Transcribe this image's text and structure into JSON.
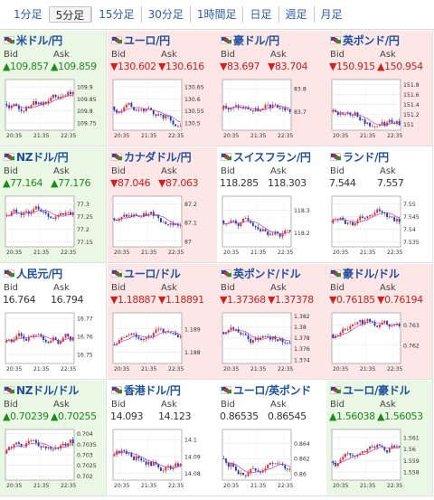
{
  "tabs": [
    "1分足",
    "5分足",
    "15分足",
    "30分足",
    "1時間足",
    "日足",
    "週足",
    "月足"
  ],
  "active_tab": "5分足",
  "time_labels": [
    "20:35",
    "21:35",
    "22:35"
  ],
  "pairs": [
    {
      "name": "米ドル/円",
      "bid": "▲109.857",
      "ask": "▲109.859",
      "dir": "up",
      "ticks": [
        "109.9",
        "109.85",
        "109.8",
        "109.75"
      ],
      "lo": 109.72,
      "hi": 109.93
    },
    {
      "name": "ユーロ/円",
      "bid": "▼130.602",
      "ask": "▼130.616",
      "dir": "down",
      "ticks": [
        "130.65",
        "130.6",
        "130.55",
        "130.5"
      ],
      "lo": 130.47,
      "hi": 130.68
    },
    {
      "name": "豪ドル/円",
      "bid": "▼83.697",
      "ask": "▼83.704",
      "dir": "down",
      "ticks": [
        "83.8",
        "83.7"
      ],
      "lo": 83.62,
      "hi": 83.84
    },
    {
      "name": "英ポンド/円",
      "bid": "▼150.915",
      "ask": "▲150.954",
      "dir": "down",
      "ticks": [
        "151.8",
        "151.6",
        "151.4",
        "151.2",
        "151"
      ],
      "lo": 150.88,
      "hi": 151.9
    },
    {
      "name": "NZドル/円",
      "bid": "▲77.164",
      "ask": "▲77.176",
      "dir": "up",
      "ticks": [
        "77.3",
        "77.25",
        "77.2",
        "77.15"
      ],
      "lo": 77.13,
      "hi": 77.33
    },
    {
      "name": "カナダドル/円",
      "bid": "▼87.046",
      "ask": "▼87.063",
      "dir": "down",
      "ticks": [
        "87.2",
        "87.1",
        "87"
      ],
      "lo": 86.97,
      "hi": 87.24
    },
    {
      "name": "スイスフラン/円",
      "bid": "118.285",
      "ask": "118.303",
      "dir": "flat",
      "ticks": [
        "118.3",
        "118.2"
      ],
      "lo": 118.14,
      "hi": 118.36
    },
    {
      "name": "ランド/円",
      "bid": "7.544",
      "ask": "7.557",
      "dir": "flat",
      "ticks": [
        "7.55",
        "7.545",
        "7.54",
        "7.535"
      ],
      "lo": 7.533,
      "hi": 7.553
    },
    {
      "name": "人民元/円",
      "bid": "16.764",
      "ask": "16.794",
      "dir": "flat",
      "ticks": [
        "16.77",
        "16.76",
        "16.75"
      ],
      "lo": 16.745,
      "hi": 16.773
    },
    {
      "name": "ユーロ/ドル",
      "bid": "▼1.18887",
      "ask": "▼1.18891",
      "dir": "down",
      "ticks": [
        "1.189",
        "1.188"
      ],
      "lo": 1.1875,
      "hi": 1.1897
    },
    {
      "name": "英ポンド/ドル",
      "bid": "▼1.37368",
      "ask": "▼1.37378",
      "dir": "down",
      "ticks": [
        "1.382",
        "1.38",
        "1.378",
        "1.376",
        "1.374"
      ],
      "lo": 1.3733,
      "hi": 1.3826
    },
    {
      "name": "豪ドル/ドル",
      "bid": "▼0.76185",
      "ask": "▼0.76194",
      "dir": "down",
      "ticks": [
        "0.763",
        "0.762"
      ],
      "lo": 0.7611,
      "hi": 0.7636
    },
    {
      "name": "NZドル/ドル",
      "bid": "▲0.70239",
      "ask": "▲0.70255",
      "dir": "up",
      "ticks": [
        "0.704",
        "0.7035",
        "0.703",
        "0.7025",
        "0.702"
      ],
      "lo": 0.7018,
      "hi": 0.7042
    },
    {
      "name": "香港ドル/円",
      "bid": "14.093",
      "ask": "14.123",
      "dir": "flat",
      "ticks": [
        "14.1",
        "14.09",
        "14.08"
      ],
      "lo": 14.076,
      "hi": 14.106
    },
    {
      "name": "ユーロ/英ポンド",
      "bid": "0.86535",
      "ask": "0.86545",
      "dir": "flat",
      "ticks": [
        "0.864",
        "0.862",
        "0.86"
      ],
      "lo": 0.8592,
      "hi": 0.8658
    },
    {
      "name": "ユーロ/豪ドル",
      "bid": "▲1.56038",
      "ask": "▲1.56053",
      "dir": "up",
      "ticks": [
        "1.561",
        "1.56",
        "1.559",
        "1.558"
      ],
      "lo": 1.5573,
      "hi": 1.5617
    }
  ],
  "labels": {
    "bid": "Bid",
    "ask": "Ask"
  },
  "colors": {
    "up_bg": "#eaf7e5",
    "down_bg": "#fce6e6",
    "up_text": "#1d8a1d",
    "down_text": "#d02020",
    "link": "#1e50a0",
    "candle_up": "#d93030",
    "candle_down": "#1f3fb8",
    "ma": "#c43cc4"
  }
}
